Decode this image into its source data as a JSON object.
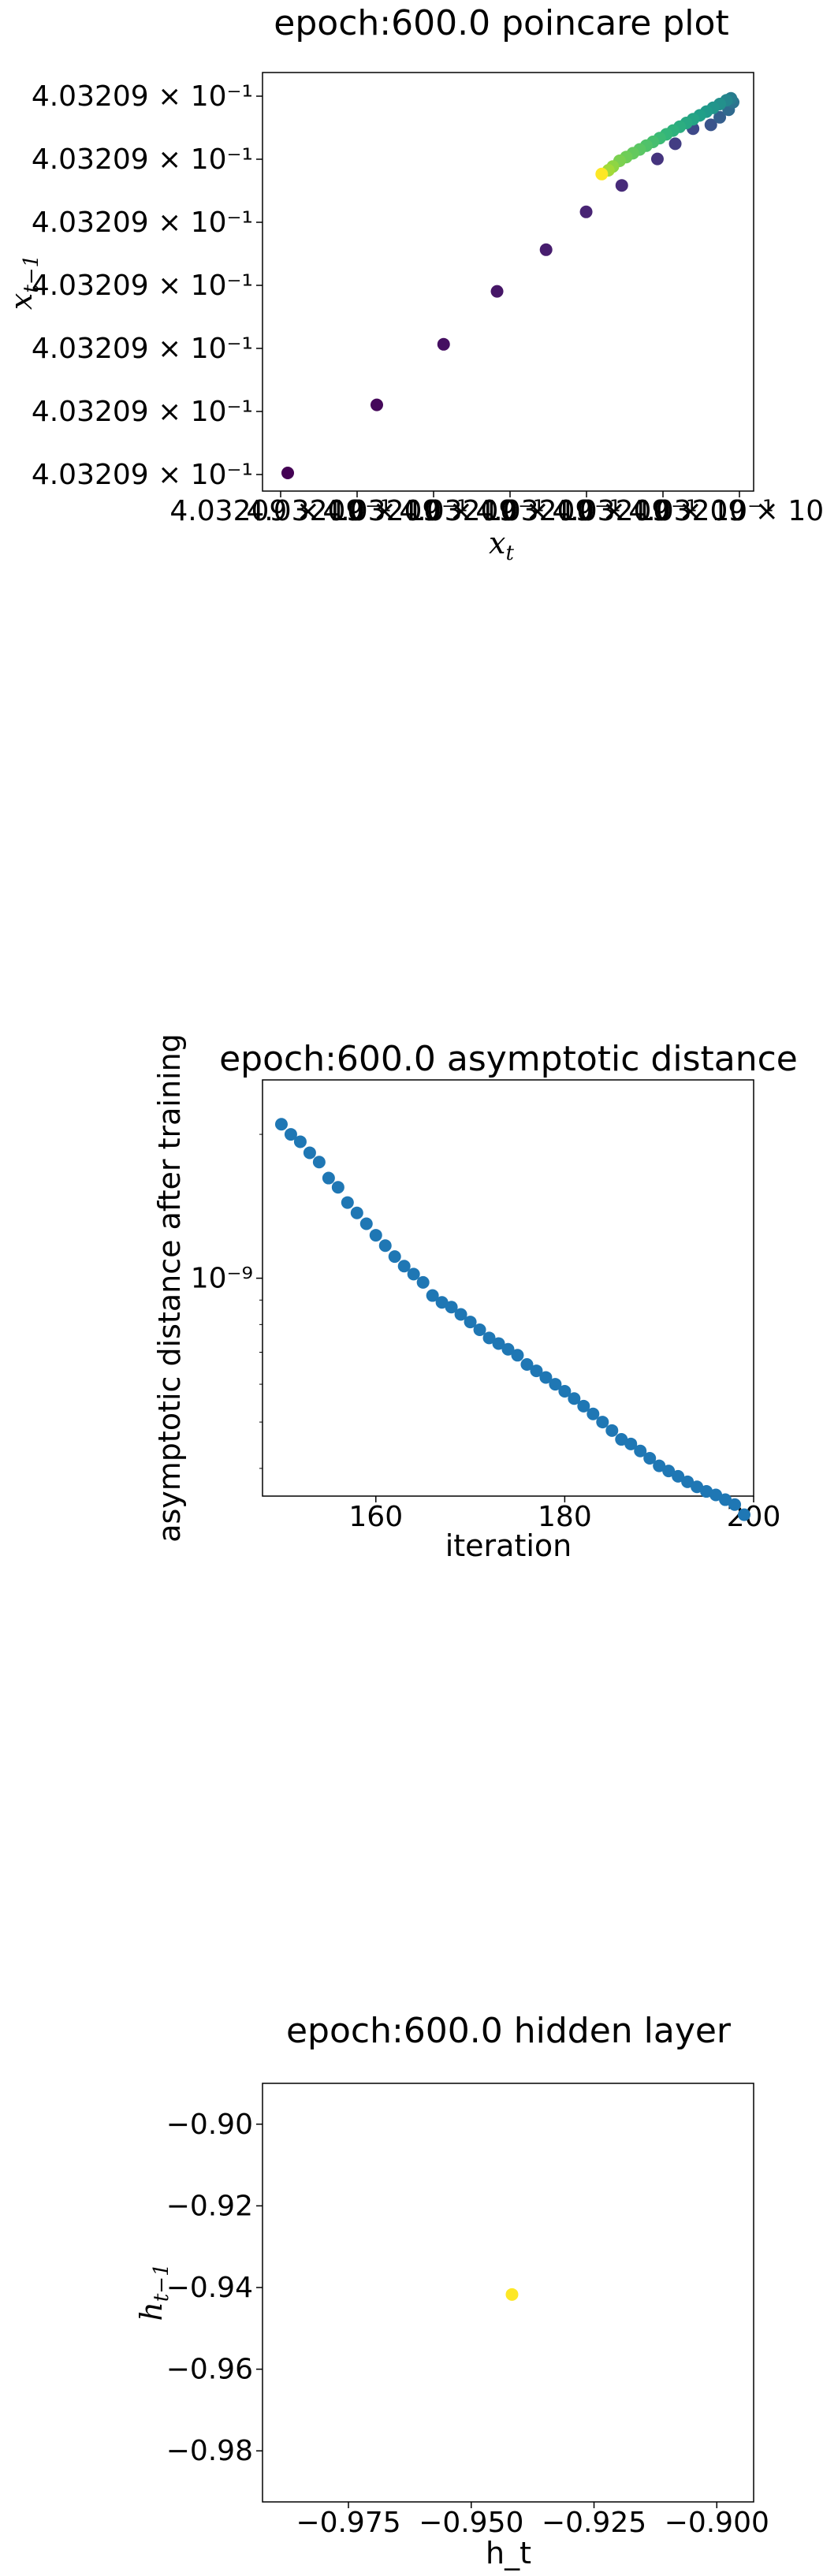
{
  "chart_data": [
    {
      "type": "scatter",
      "title": "epoch:600.0 poincare plot",
      "xlabel": "x",
      "xlabel_sub": "t",
      "ylabel": "x",
      "ylabel_sub": "t−1",
      "yticks": [
        "4.03209 × 10⁻¹",
        "4.03209 × 10⁻¹",
        "4.03209 × 10⁻¹",
        "4.03209 × 10⁻¹",
        "4.03209 × 10⁻¹",
        "4.03209 × 10⁻¹",
        "4.03209 × 10⁻¹"
      ],
      "xticks": [
        "4.03209 × 10⁻¹",
        "4.03209 × 10⁻¹",
        "4.03209 × 10⁻¹",
        "4.03209 × 10⁻¹",
        "4.03209 × 10⁻¹",
        "4.03209 × 10⁻¹",
        "4.03209 × 10⁻¹"
      ],
      "colormap": "viridis",
      "grid": false,
      "points": [
        {
          "x": 0.0,
          "y": 0.0,
          "c": 0.0
        },
        {
          "x": 0.2,
          "y": 0.18,
          "c": 0.02
        },
        {
          "x": 0.35,
          "y": 0.34,
          "c": 0.04
        },
        {
          "x": 0.47,
          "y": 0.48,
          "c": 0.06
        },
        {
          "x": 0.58,
          "y": 0.59,
          "c": 0.08
        },
        {
          "x": 0.67,
          "y": 0.69,
          "c": 0.1
        },
        {
          "x": 0.75,
          "y": 0.76,
          "c": 0.12
        },
        {
          "x": 0.83,
          "y": 0.83,
          "c": 0.15
        },
        {
          "x": 0.87,
          "y": 0.87,
          "c": 0.18
        },
        {
          "x": 0.91,
          "y": 0.91,
          "c": 0.22
        },
        {
          "x": 0.95,
          "y": 0.92,
          "c": 0.26
        },
        {
          "x": 0.97,
          "y": 0.94,
          "c": 0.3
        },
        {
          "x": 0.99,
          "y": 0.96,
          "c": 0.34
        },
        {
          "x": 1.0,
          "y": 0.98,
          "c": 0.38
        },
        {
          "x": 0.995,
          "y": 0.99,
          "c": 0.42
        },
        {
          "x": 0.985,
          "y": 0.985,
          "c": 0.46
        },
        {
          "x": 0.97,
          "y": 0.975,
          "c": 0.5
        },
        {
          "x": 0.955,
          "y": 0.965,
          "c": 0.52
        },
        {
          "x": 0.94,
          "y": 0.955,
          "c": 0.54
        },
        {
          "x": 0.925,
          "y": 0.945,
          "c": 0.56
        },
        {
          "x": 0.91,
          "y": 0.935,
          "c": 0.58
        },
        {
          "x": 0.895,
          "y": 0.925,
          "c": 0.6
        },
        {
          "x": 0.88,
          "y": 0.915,
          "c": 0.62
        },
        {
          "x": 0.865,
          "y": 0.905,
          "c": 0.64
        },
        {
          "x": 0.85,
          "y": 0.895,
          "c": 0.66
        },
        {
          "x": 0.835,
          "y": 0.885,
          "c": 0.68
        },
        {
          "x": 0.82,
          "y": 0.875,
          "c": 0.7
        },
        {
          "x": 0.805,
          "y": 0.865,
          "c": 0.72
        },
        {
          "x": 0.79,
          "y": 0.855,
          "c": 0.74
        },
        {
          "x": 0.775,
          "y": 0.845,
          "c": 0.76
        },
        {
          "x": 0.76,
          "y": 0.835,
          "c": 0.78
        },
        {
          "x": 0.745,
          "y": 0.825,
          "c": 0.8
        },
        {
          "x": 0.73,
          "y": 0.81,
          "c": 0.83
        },
        {
          "x": 0.72,
          "y": 0.8,
          "c": 0.86
        },
        {
          "x": 0.705,
          "y": 0.79,
          "c": 1.0
        }
      ]
    },
    {
      "type": "scatter",
      "title": "epoch:600.0 asymptotic distance",
      "xlabel": "iteration",
      "ylabel": "asymptotic distance after training",
      "yscale": "log",
      "xlim": [
        148,
        200
      ],
      "ylim": [
        3.5e-10,
        2.6e-09
      ],
      "xticks": [
        "160",
        "180",
        "200"
      ],
      "yticks": [
        "10⁻⁹"
      ],
      "color": "#1f77b4",
      "grid": false,
      "x": [
        150,
        151,
        152,
        153,
        154,
        155,
        156,
        157,
        158,
        159,
        160,
        161,
        162,
        163,
        164,
        165,
        166,
        167,
        168,
        169,
        170,
        171,
        172,
        173,
        174,
        175,
        176,
        177,
        178,
        179,
        180,
        181,
        182,
        183,
        184,
        185,
        186,
        187,
        188,
        189,
        190,
        191,
        192,
        193,
        194,
        195,
        196,
        197,
        198,
        199
      ],
      "y": [
        2.1e-09,
        2e-09,
        1.93e-09,
        1.83e-09,
        1.75e-09,
        1.62e-09,
        1.55e-09,
        1.44e-09,
        1.37e-09,
        1.3e-09,
        1.23e-09,
        1.17e-09,
        1.11e-09,
        1.06e-09,
        1.02e-09,
        9.8e-10,
        9.2e-10,
        8.9e-10,
        8.7e-10,
        8.4e-10,
        8.1e-10,
        7.8e-10,
        7.5e-10,
        7.3e-10,
        7.1e-10,
        6.9e-10,
        6.6e-10,
        6.4e-10,
        6.2e-10,
        6e-10,
        5.8e-10,
        5.6e-10,
        5.4e-10,
        5.2e-10,
        5e-10,
        4.8e-10,
        4.6e-10,
        4.5e-10,
        4.35e-10,
        4.2e-10,
        4.05e-10,
        3.95e-10,
        3.85e-10,
        3.75e-10,
        3.66e-10,
        3.58e-10,
        3.52e-10,
        3.44e-10,
        3.36e-10,
        3.2e-10
      ]
    },
    {
      "type": "scatter",
      "title": "epoch:600.0 hidden layer",
      "xlabel": "h_t",
      "ylabel": "h",
      "ylabel_sub": "t−1",
      "xlim": [
        -0.9925,
        -0.8925
      ],
      "ylim": [
        -0.9925,
        -0.89
      ],
      "xticks": [
        -0.975,
        -0.95,
        -0.925,
        -0.9
      ],
      "xtick_labels": [
        "−0.975",
        "−0.950",
        "−0.925",
        "−0.900"
      ],
      "yticks": [
        -0.98,
        -0.96,
        -0.94,
        -0.92,
        -0.9
      ],
      "ytick_labels": [
        "−0.98",
        "−0.96",
        "−0.94",
        "−0.92",
        "−0.90"
      ],
      "color": "#fde725",
      "grid": false,
      "points": [
        {
          "x": -0.9417,
          "y": -0.9417
        }
      ]
    }
  ]
}
